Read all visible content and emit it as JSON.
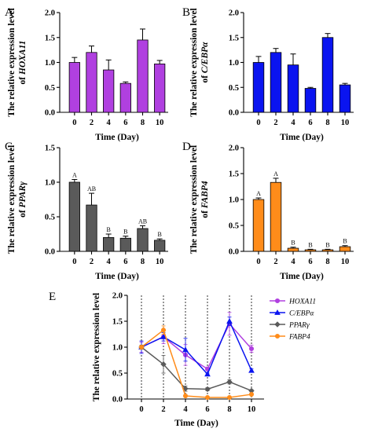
{
  "chart_data": [
    {
      "letter": "A",
      "type": "bar",
      "categories": [
        "0",
        "2",
        "4",
        "6",
        "8",
        "10"
      ],
      "values": [
        1.0,
        1.2,
        0.85,
        0.58,
        1.45,
        0.97
      ],
      "errors": [
        0.1,
        0.13,
        0.2,
        0.03,
        0.22,
        0.07
      ],
      "labels": [],
      "color": "#b040e0",
      "xlabel": "Time (Day)",
      "ylabel_prefix": "The relative expression level",
      "ylabel_prefix2": "of ",
      "ylabel_gene": "HOXA11",
      "ylim": [
        0,
        2.0
      ],
      "yticks": [
        "0.0",
        "0.5",
        "1.0",
        "1.5",
        "2.0"
      ]
    },
    {
      "letter": "B",
      "type": "bar",
      "categories": [
        "0",
        "2",
        "4",
        "6",
        "8",
        "10"
      ],
      "values": [
        1.0,
        1.2,
        0.95,
        0.48,
        1.5,
        0.55
      ],
      "errors": [
        0.12,
        0.08,
        0.22,
        0.02,
        0.08,
        0.03
      ],
      "labels": [],
      "color": "#0a14f0",
      "xlabel": "Time (Day)",
      "ylabel_prefix": "The relative expression level",
      "ylabel_prefix2": "of ",
      "ylabel_gene": "C/EBPα",
      "ylim": [
        0,
        2.0
      ],
      "yticks": [
        "0.0",
        "0.5",
        "1.0",
        "1.5",
        "2.0"
      ]
    },
    {
      "letter": "C",
      "type": "bar",
      "categories": [
        "0",
        "2",
        "4",
        "6",
        "8",
        "10"
      ],
      "values": [
        1.0,
        0.67,
        0.2,
        0.19,
        0.33,
        0.16
      ],
      "errors": [
        0.04,
        0.17,
        0.05,
        0.03,
        0.04,
        0.02
      ],
      "labels": [
        "A",
        "AB",
        "B",
        "B",
        "AB",
        "B"
      ],
      "color": "#5a5a5a",
      "xlabel": "Time (Day)",
      "ylabel_prefix": "The relative expression level",
      "ylabel_prefix2": "of ",
      "ylabel_gene": "PPARγ",
      "ylim": [
        0,
        1.5
      ],
      "yticks": [
        "0.0",
        "0.5",
        "1.0",
        "1.5"
      ]
    },
    {
      "letter": "D",
      "type": "bar",
      "categories": [
        "0",
        "2",
        "4",
        "6",
        "8",
        "10"
      ],
      "values": [
        1.0,
        1.33,
        0.06,
        0.03,
        0.03,
        0.09
      ],
      "errors": [
        0.03,
        0.08,
        0.02,
        0.01,
        0.01,
        0.02
      ],
      "labels": [
        "A",
        "A",
        "B",
        "B",
        "B",
        "B"
      ],
      "color": "#ff8c1a",
      "xlabel": "Time (Day)",
      "ylabel_prefix": "The relative expression level",
      "ylabel_prefix2": "of ",
      "ylabel_gene": "FABP4",
      "ylim": [
        0,
        2.0
      ],
      "yticks": [
        "0.0",
        "0.5",
        "1.0",
        "1.5",
        "2.0"
      ]
    },
    {
      "letter": "E",
      "type": "line",
      "x": [
        0,
        2,
        4,
        6,
        8,
        10
      ],
      "xticks": [
        "0",
        "2",
        "4",
        "6",
        "8",
        "10"
      ],
      "xlabel": "Time (Day)",
      "ylabel": "The relative expression level",
      "ylim": [
        0,
        2.0
      ],
      "yticks": [
        "0.0",
        "0.5",
        "1.0",
        "1.5",
        "2.0"
      ],
      "legend_position": "right",
      "series": [
        {
          "name": "HOXA11",
          "color": "#b040e0",
          "marker": "circle",
          "values": [
            1.0,
            1.2,
            0.85,
            0.58,
            1.45,
            0.97
          ],
          "errors": [
            0.1,
            0.13,
            0.2,
            0.03,
            0.22,
            0.07
          ]
        },
        {
          "name": "C/EBPα",
          "color": "#0a14f0",
          "marker": "triangle",
          "values": [
            1.0,
            1.2,
            0.95,
            0.48,
            1.5,
            0.55
          ],
          "errors": [
            0.12,
            0.08,
            0.22,
            0.02,
            0.08,
            0.03
          ]
        },
        {
          "name": "PPARγ",
          "color": "#5a5a5a",
          "marker": "diamond",
          "values": [
            1.0,
            0.67,
            0.2,
            0.19,
            0.33,
            0.16
          ],
          "errors": [
            0.04,
            0.17,
            0.05,
            0.03,
            0.04,
            0.02
          ]
        },
        {
          "name": "FABP4",
          "color": "#ff8c1a",
          "marker": "circle",
          "values": [
            1.0,
            1.33,
            0.06,
            0.03,
            0.03,
            0.09
          ],
          "errors": [
            0.03,
            0.08,
            0.02,
            0.01,
            0.01,
            0.02
          ]
        }
      ]
    }
  ]
}
